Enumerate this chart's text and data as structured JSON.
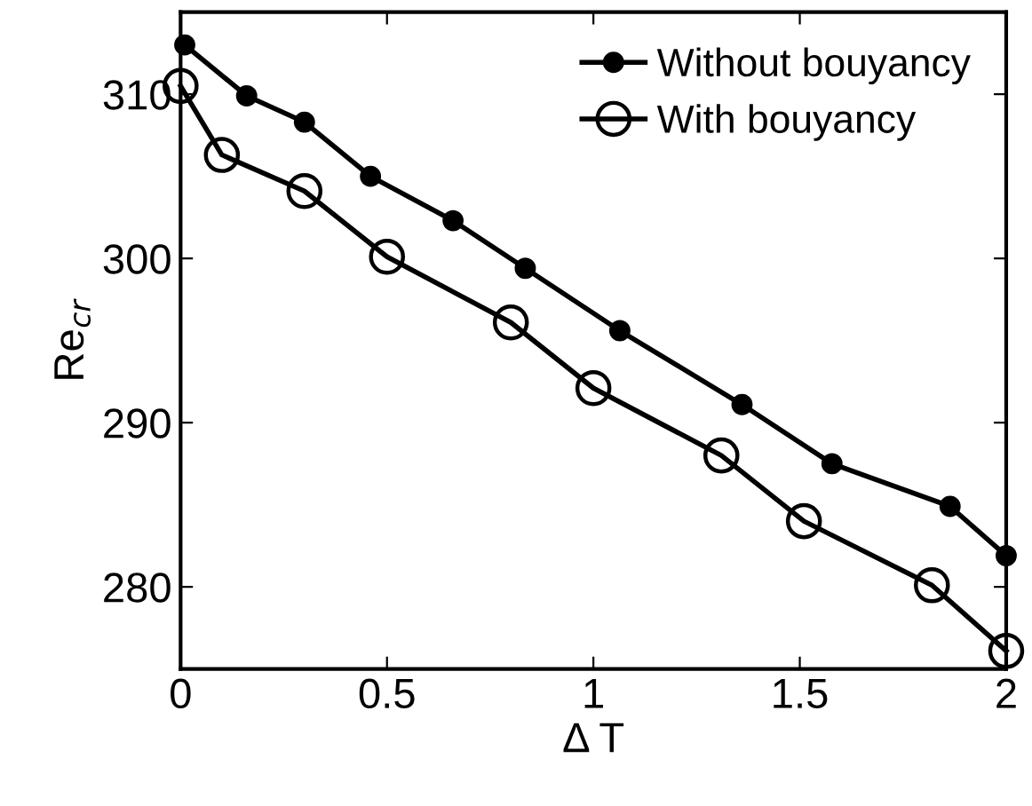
{
  "chart_data": {
    "type": "line",
    "xlabel": "Δ T",
    "ylabel": "Re$_{cr}$",
    "xlim": [
      0,
      2
    ],
    "ylim": [
      275,
      315
    ],
    "xticks": [
      0,
      0.5,
      1,
      1.5,
      2
    ],
    "yticks": [
      280,
      290,
      300,
      310
    ],
    "grid": false,
    "legend": "top right",
    "line_style": "solid",
    "series": [
      {
        "name": "Without bouyancy",
        "color": "#000000",
        "marker": "circle",
        "x": [
          0.01,
          0.16,
          0.3,
          0.46,
          0.66,
          0.835,
          1.064,
          1.36,
          1.578,
          1.864,
          2.0
        ],
        "values": [
          313.0,
          309.9,
          308.3,
          305.0,
          302.3,
          299.4,
          295.6,
          291.1,
          287.5,
          284.9,
          281.9
        ]
      },
      {
        "name": "With bouyancy",
        "color": "#000000",
        "marker": "circle",
        "x": [
          0.0,
          0.1,
          0.3,
          0.5,
          0.8,
          1.0,
          1.31,
          1.51,
          1.82,
          2.0
        ],
        "values": [
          310.5,
          306.3,
          304.1,
          300.1,
          296.1,
          292.1,
          288.0,
          284.0,
          280.1,
          276.1
        ]
      }
    ]
  }
}
